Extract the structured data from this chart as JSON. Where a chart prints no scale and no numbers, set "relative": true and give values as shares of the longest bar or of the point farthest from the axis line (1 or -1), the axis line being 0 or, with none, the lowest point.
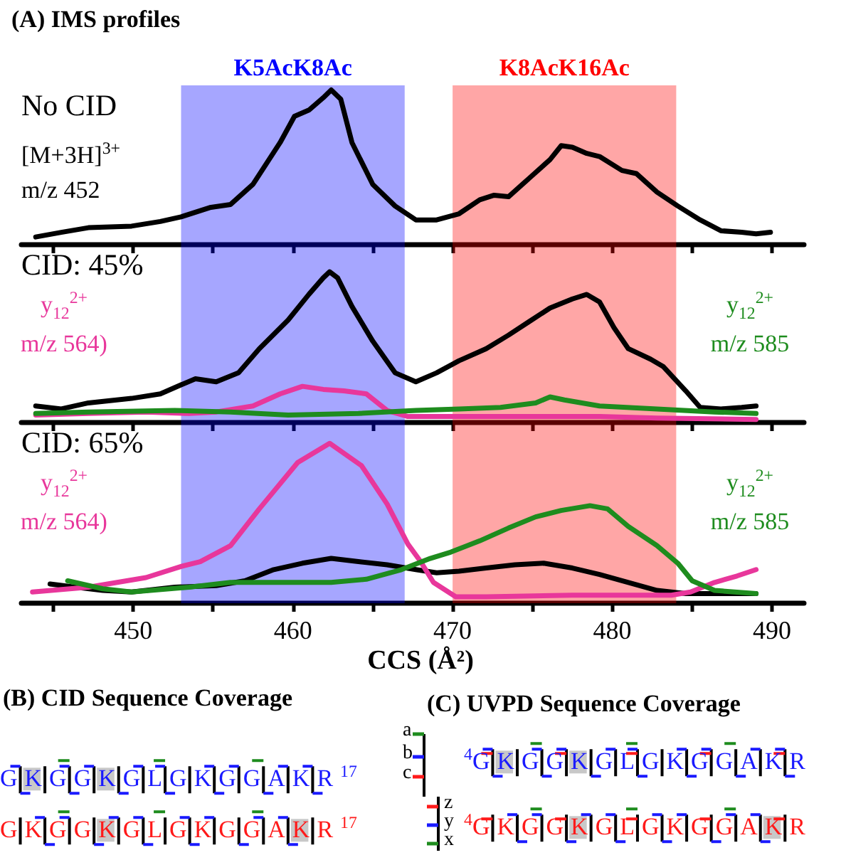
{
  "chart_data": [
    {
      "type": "line",
      "title": "(A) IMS profiles",
      "subtitle": "No CID",
      "relative": true,
      "marker": "none",
      "tick_labels": false,
      "xlim": [
        443,
        492
      ],
      "xticks": [
        {
          "value": 445,
          "label": null
        },
        450,
        {
          "value": 455,
          "label": null
        },
        460,
        {
          "value": 465,
          "label": null
        },
        470,
        {
          "value": 475,
          "label": null
        },
        480,
        {
          "value": 485,
          "label": null
        },
        490
      ],
      "bands": [
        {
          "axis": "x",
          "from": 453,
          "to": 467,
          "label": "K5AcK8Ac",
          "color": "#0000ff"
        },
        {
          "axis": "x",
          "from": 470,
          "to": 484,
          "label": "K8AcK16Ac",
          "color": "#ff0000"
        }
      ],
      "series": [
        {
          "name": "[M+3H]$^{3+}$ m/z 452",
          "color": "#000000",
          "x": [
            443.9,
            445.5,
            447.2,
            449.9,
            451.7,
            453.0,
            454.8,
            456.1,
            457.5,
            459.2,
            460.1,
            461.0,
            461.9,
            462.4,
            463.0,
            463.7,
            465.0,
            466.4,
            467.7,
            469.0,
            470.4,
            471.7,
            472.6,
            473.5,
            474.8,
            476.1,
            476.8,
            477.5,
            478.4,
            479.2,
            480.6,
            481.5,
            482.8,
            484.1,
            485.5,
            486.8,
            488.1,
            489.0,
            489.9
          ],
          "values": [
            0.05,
            0.08,
            0.11,
            0.12,
            0.15,
            0.18,
            0.24,
            0.26,
            0.39,
            0.66,
            0.83,
            0.87,
            0.95,
            1.0,
            0.94,
            0.66,
            0.39,
            0.25,
            0.16,
            0.16,
            0.2,
            0.29,
            0.32,
            0.31,
            0.43,
            0.55,
            0.64,
            0.63,
            0.59,
            0.57,
            0.48,
            0.46,
            0.34,
            0.25,
            0.16,
            0.09,
            0.08,
            0.07,
            0.08
          ]
        }
      ]
    },
    {
      "type": "line",
      "subtitle": "CID: 45%",
      "relative": true,
      "marker": "none",
      "tick_labels": false,
      "xlim": [
        443,
        492
      ],
      "xticks": [
        {
          "value": 445,
          "label": null
        },
        450,
        {
          "value": 455,
          "label": null
        },
        460,
        {
          "value": 465,
          "label": null
        },
        470,
        {
          "value": 475,
          "label": null
        },
        480,
        {
          "value": 485,
          "label": null
        },
        490
      ],
      "bands": [
        {
          "axis": "x",
          "from": 453,
          "to": 467,
          "color": "#0000ff"
        },
        {
          "axis": "x",
          "from": 470,
          "to": 484,
          "color": "#ff0000"
        }
      ],
      "series": [
        {
          "color": "#000000",
          "x": [
            443.9,
            445.5,
            447.2,
            449.9,
            451.7,
            453.0,
            453.9,
            455.2,
            456.6,
            457.9,
            459.7,
            461.0,
            461.9,
            462.3,
            462.8,
            463.7,
            465.0,
            466.4,
            467.7,
            469.0,
            470.4,
            472.1,
            473.5,
            474.8,
            476.1,
            477.5,
            478.4,
            479.2,
            480.1,
            481.0,
            482.4,
            483.2,
            484.6,
            485.5,
            486.8,
            488.1,
            489.0
          ],
          "values": [
            0.11,
            0.09,
            0.13,
            0.16,
            0.19,
            0.25,
            0.29,
            0.27,
            0.33,
            0.49,
            0.68,
            0.85,
            0.96,
            1.0,
            0.96,
            0.77,
            0.54,
            0.33,
            0.27,
            0.33,
            0.41,
            0.49,
            0.58,
            0.67,
            0.76,
            0.82,
            0.85,
            0.8,
            0.63,
            0.49,
            0.42,
            0.37,
            0.21,
            0.1,
            0.09,
            0.1,
            0.11
          ]
        },
        {
          "name": "y$_{12}$$^{2+}$ m/z 564)",
          "color": "#e8379b",
          "x": [
            443.9,
            447.2,
            450.8,
            453.5,
            455.2,
            457.5,
            459.2,
            460.6,
            461.9,
            463.2,
            464.6,
            465.9,
            467.2,
            470.4,
            475.7,
            479.2,
            482.8,
            489.0
          ],
          "values": [
            0.05,
            0.06,
            0.07,
            0.06,
            0.07,
            0.11,
            0.19,
            0.24,
            0.22,
            0.21,
            0.19,
            0.08,
            0.04,
            0.04,
            0.04,
            0.04,
            0.03,
            0.02
          ]
        },
        {
          "name": "y$_{12}$$^{2+}$ m/z 585",
          "color": "#1e8c1e",
          "x": [
            443.9,
            447.2,
            452.6,
            456.1,
            459.7,
            464.1,
            467.7,
            470.4,
            473.0,
            475.2,
            476.1,
            477.0,
            479.2,
            482.8,
            486.4,
            489.0
          ],
          "values": [
            0.06,
            0.07,
            0.08,
            0.07,
            0.05,
            0.06,
            0.08,
            0.09,
            0.1,
            0.13,
            0.17,
            0.15,
            0.11,
            0.09,
            0.07,
            0.06
          ]
        }
      ]
    },
    {
      "type": "line",
      "subtitle": "CID: 65%",
      "xlabel": "CCS (Å²)",
      "relative": true,
      "marker": "none",
      "xlim": [
        443,
        492
      ],
      "xticks": [
        {
          "value": 445,
          "label": null
        },
        450,
        {
          "value": 455,
          "label": null
        },
        460,
        {
          "value": 465,
          "label": null
        },
        470,
        {
          "value": 475,
          "label": null
        },
        480,
        {
          "value": 485,
          "label": null
        },
        490
      ],
      "bands": [
        {
          "axis": "x",
          "from": 453,
          "to": 467,
          "color": "#0000ff"
        },
        {
          "axis": "x",
          "from": 470,
          "to": 484,
          "color": "#ff0000"
        }
      ],
      "series": [
        {
          "color": "#000000",
          "x": [
            444.8,
            446.4,
            448.1,
            449.9,
            452.6,
            455.2,
            457.0,
            458.8,
            460.6,
            462.4,
            464.1,
            465.9,
            467.7,
            469.0,
            470.4,
            472.1,
            473.9,
            475.7,
            477.5,
            479.2,
            481.0,
            482.8,
            484.6,
            489.0
          ],
          "values": [
            0.12,
            0.1,
            0.08,
            0.07,
            0.1,
            0.11,
            0.14,
            0.21,
            0.25,
            0.28,
            0.26,
            0.24,
            0.21,
            0.19,
            0.2,
            0.22,
            0.24,
            0.25,
            0.22,
            0.18,
            0.13,
            0.08,
            0.06,
            0.06
          ]
        },
        {
          "name": "y$_{12}$$^{2+}$ m/z 564)",
          "color": "#e8379b",
          "x": [
            443.7,
            447.2,
            449.0,
            450.8,
            453.0,
            454.2,
            456.1,
            457.9,
            460.3,
            462.3,
            464.3,
            465.9,
            467.2,
            468.0,
            468.8,
            470.2,
            472.1,
            477.5,
            483.7,
            484.9,
            486.4,
            487.8,
            489.0
          ],
          "values": [
            0.07,
            0.1,
            0.13,
            0.16,
            0.23,
            0.26,
            0.36,
            0.59,
            0.88,
            1.0,
            0.86,
            0.62,
            0.37,
            0.26,
            0.13,
            0.04,
            0.04,
            0.05,
            0.05,
            0.07,
            0.13,
            0.17,
            0.21
          ]
        },
        {
          "name": "y$_{12}$$^{2+}$ m/z 585",
          "color": "#1e8c1e",
          "x": [
            445.9,
            448.1,
            449.9,
            453.5,
            456.1,
            459.7,
            462.4,
            464.6,
            466.8,
            468.6,
            469.9,
            471.7,
            473.5,
            475.2,
            476.8,
            478.6,
            479.7,
            481.0,
            482.8,
            484.1,
            485.0,
            486.4,
            489.0
          ],
          "values": [
            0.14,
            0.09,
            0.07,
            0.1,
            0.13,
            0.13,
            0.13,
            0.15,
            0.21,
            0.28,
            0.32,
            0.39,
            0.47,
            0.54,
            0.58,
            0.61,
            0.59,
            0.48,
            0.36,
            0.25,
            0.14,
            0.08,
            0.06
          ]
        }
      ]
    },
    {
      "type": "other",
      "title": "(B) CID Sequence Coverage",
      "annotations": [
        "GKGGKGLGKGGAKR$^{17}$",
        "GKGGKGLGKGGAKR$^{17}$"
      ]
    },
    {
      "type": "other",
      "title": "(C) UVPD Sequence Coverage",
      "annotations": [
        "a",
        "b",
        "c",
        "z",
        "y",
        "x",
        "$^{4}$GKGGKGLGKGGAKR",
        "$^{4}$GKGGKGLGKGGAKR"
      ]
    }
  ]
}
